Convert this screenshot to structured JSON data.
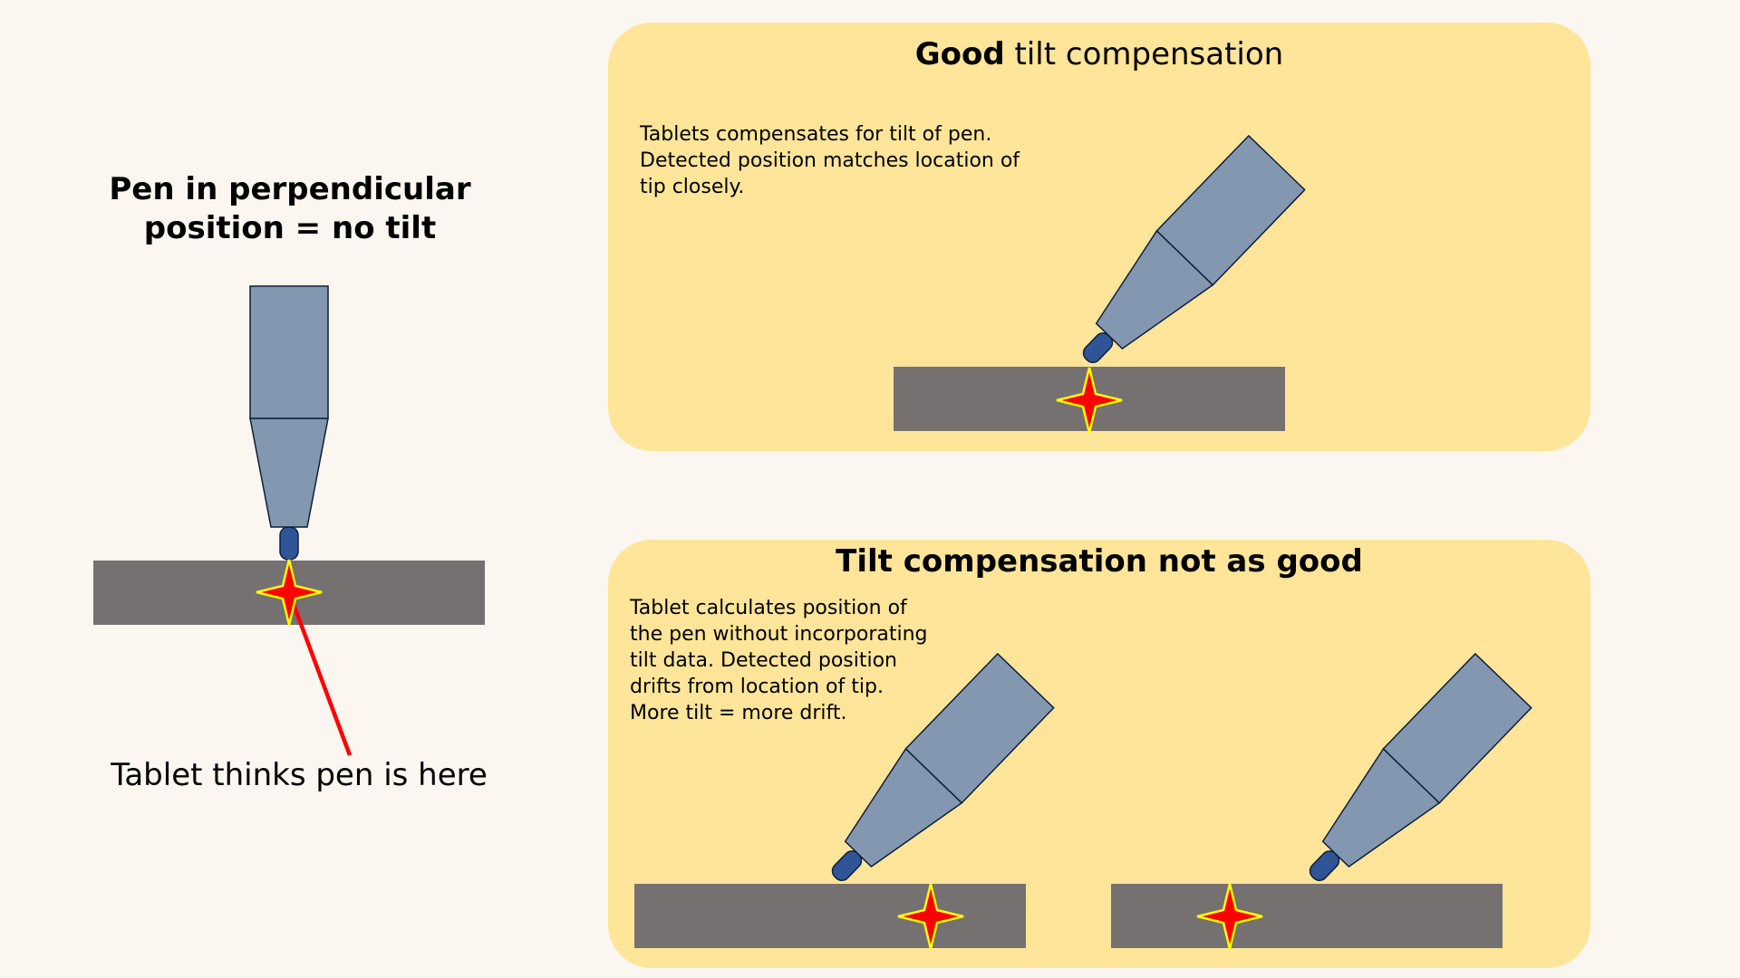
{
  "left": {
    "title_line1": "Pen in perpendicular",
    "title_line2": "position = no tilt",
    "caption": "Tablet thinks pen is here"
  },
  "good": {
    "title_bold": "Good",
    "title_rest": " tilt compensation",
    "description": "Tablets compensates for tilt of pen. Detected position matches location of tip closely."
  },
  "bad": {
    "title": "Tilt compensation not as good",
    "description": "Tablet calculates position of the pen without incorporating tilt data. Detected position drifts from location of tip. More tilt = more drift."
  },
  "colors": {
    "background": "#fbf6f0",
    "panel": "#ffe599",
    "tablet": "#767171",
    "pen_body": "#8497b0",
    "pen_tip": "#2f5597",
    "star_fill": "#ff0000",
    "star_outline": "#ffff00",
    "pointer_line": "#ff0000"
  }
}
